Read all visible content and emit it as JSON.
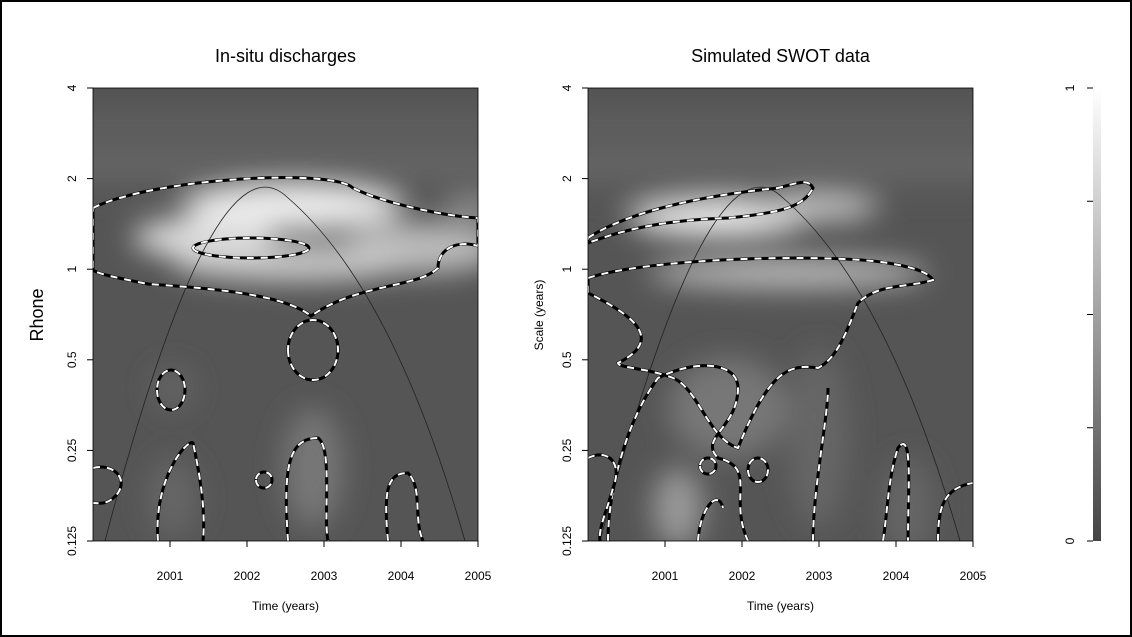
{
  "chart_data": [
    {
      "type": "heatmap",
      "title": "In-situ discharges",
      "y_label": "Rhone",
      "x_label": "Time (years)",
      "xlim": [
        2000,
        2005
      ],
      "xticks": [
        2001,
        2002,
        2003,
        2004,
        2005
      ],
      "ylim": [
        0.125,
        4
      ],
      "yticks": [
        0.125,
        0.25,
        0.5,
        1,
        2,
        4
      ],
      "y_scale": "log"
    },
    {
      "type": "heatmap",
      "title": "Simulated SWOT data",
      "y_label": "Scale (years)",
      "x_label": "Time (years)",
      "xlim": [
        2000,
        2005
      ],
      "xticks": [
        2001,
        2002,
        2003,
        2004,
        2005
      ],
      "ylim": [
        0.125,
        4
      ],
      "yticks": [
        0.125,
        0.25,
        0.5,
        1,
        2,
        4
      ],
      "y_scale": "log"
    },
    {
      "type": "colorbar",
      "ylim": [
        0,
        1
      ],
      "yticks": [
        0,
        1
      ]
    }
  ]
}
